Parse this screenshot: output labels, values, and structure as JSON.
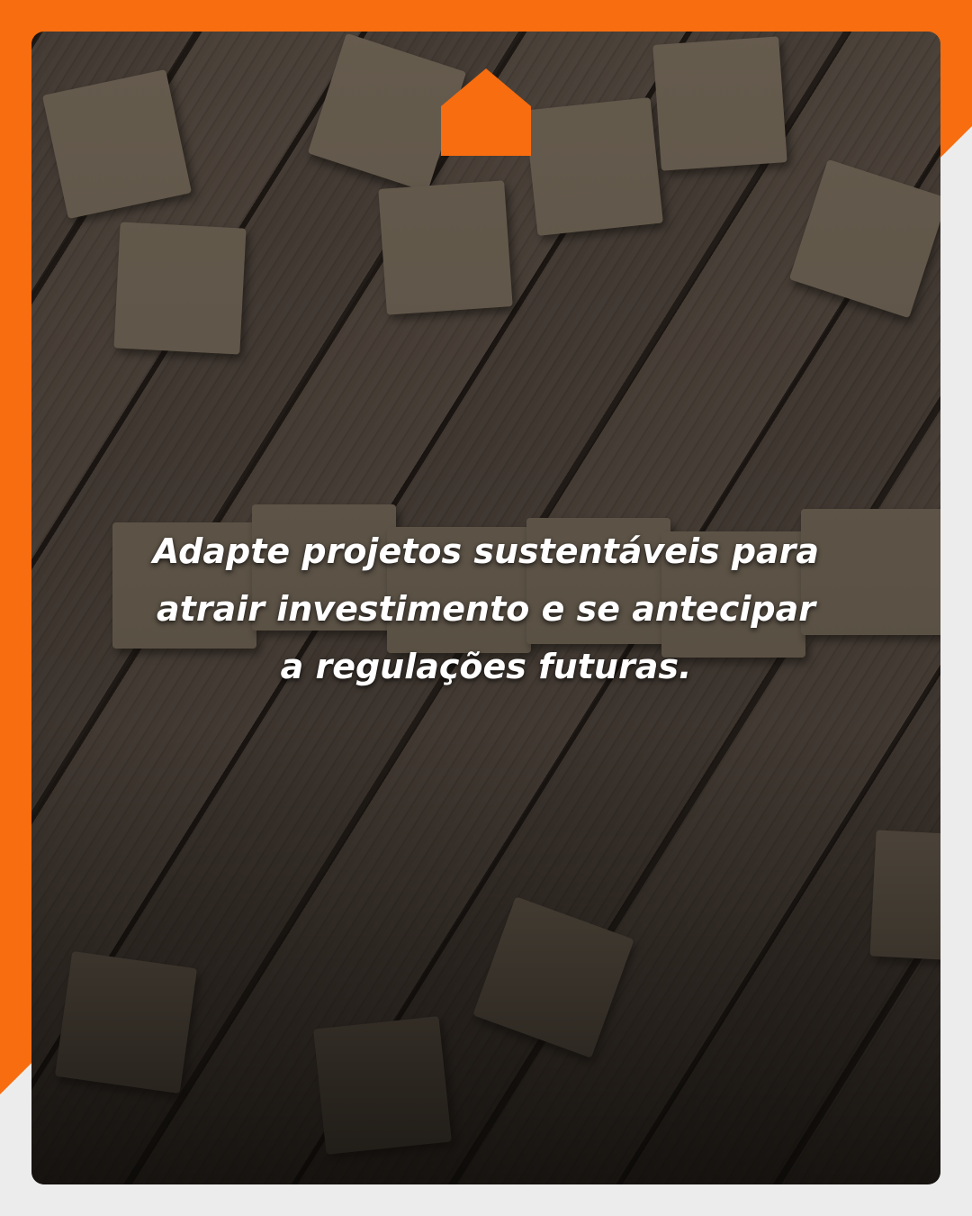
{
  "caption": {
    "lines": [
      "Adapte projetos sustentáveis para",
      "atrair investimento e se antecipar",
      "a regulações futuras."
    ]
  }
}
